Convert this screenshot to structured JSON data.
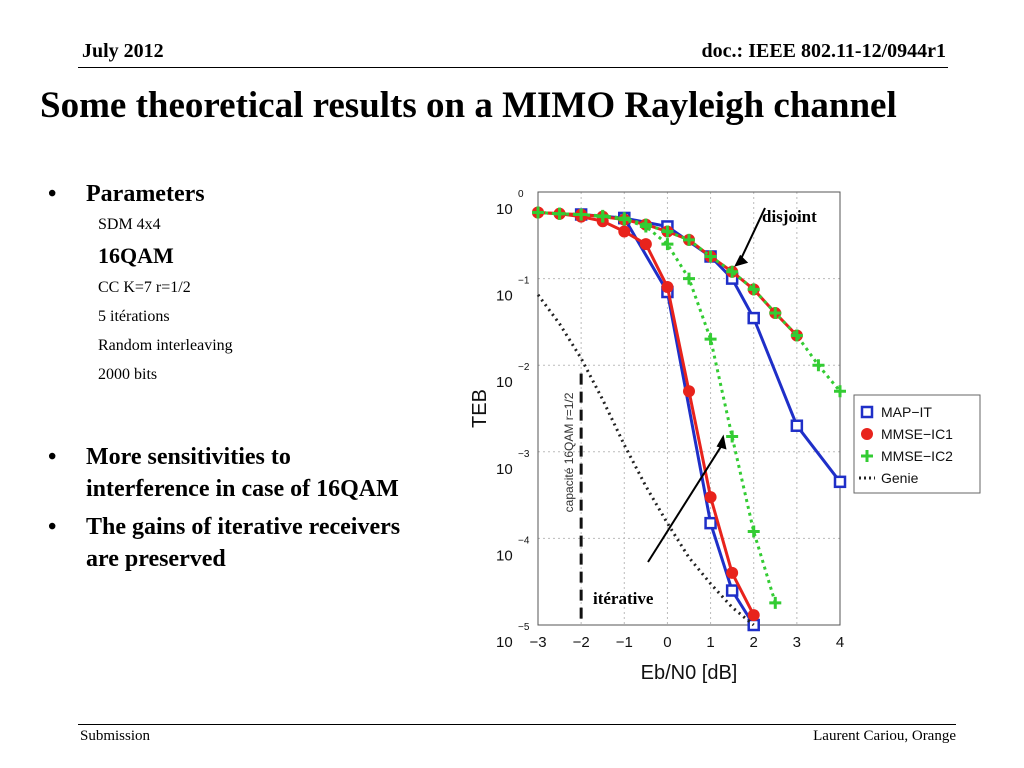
{
  "header": {
    "date": "July 2012",
    "doc": "doc.: IEEE 802.11-12/0944r1"
  },
  "title": "Some theoretical results on a MIMO Rayleigh channel",
  "bullets": {
    "parameters_label": "Parameters",
    "params": [
      "SDM 4x4",
      "16QAM",
      "CC K=7 r=1/2",
      "5 itérations",
      "Random interleaving",
      "2000 bits"
    ],
    "points": [
      "More sensitivities to interference in case of 16QAM",
      "The gains of iterative receivers are preserved"
    ]
  },
  "footer": {
    "left": "Submission",
    "right": "Laurent Cariou, Orange"
  },
  "chart_data": {
    "type": "line",
    "title": "",
    "xlabel": "Eb/N0 [dB]",
    "ylabel": "TEB",
    "xlim": [
      -3,
      4
    ],
    "ylim": [
      1e-05,
      1
    ],
    "y_scale": "log",
    "grid": true,
    "legend_position": "right",
    "x_ticks": [
      -3,
      -2,
      -1,
      0,
      1,
      2,
      3,
      4
    ],
    "x_tick_labels": [
      "−3",
      "−2",
      "−1",
      "0",
      "1",
      "2",
      "3",
      "4"
    ],
    "y_tick_exponents": [
      "0",
      "−1",
      "−2",
      "−3",
      "−4",
      "−5"
    ],
    "y_tick_base": "10",
    "series": [
      {
        "name": "MAP−IT",
        "color": "#1f2fc8",
        "marker": "square",
        "style": "solid",
        "x": [
          -1,
          0,
          1,
          1.5,
          2,
          3,
          4
        ],
        "y": [
          0.5,
          0.4,
          0.18,
          0.1,
          0.035,
          0.002,
          0.00045
        ]
      },
      {
        "name": "MAP−IT",
        "color": "#1f2fc8",
        "marker": "square",
        "style": "solid",
        "x": [
          -2,
          -1,
          0,
          1,
          1.5,
          2
        ],
        "y": [
          0.55,
          0.5,
          0.07,
          0.00015,
          2.5e-05,
          1e-05
        ]
      },
      {
        "name": "MMSE−IC1",
        "color": "#e8231c",
        "marker": "circle",
        "style": "solid",
        "x": [
          -3,
          -2.5,
          -2,
          -1.5,
          -1,
          -0.5,
          0,
          0.5,
          1,
          1.5,
          2
        ],
        "y": [
          0.58,
          0.56,
          0.52,
          0.46,
          0.35,
          0.25,
          0.08,
          0.005,
          0.0003,
          4e-05,
          1.3e-05
        ]
      },
      {
        "name": "MMSE−IC1",
        "color": "#e8231c",
        "marker": "circle",
        "style": "solid",
        "x": [
          -3,
          -2.5,
          -2,
          -1.5,
          -1,
          -0.5,
          0,
          0.5,
          1,
          1.5,
          2,
          2.5,
          3
        ],
        "y": [
          0.58,
          0.56,
          0.55,
          0.52,
          0.48,
          0.42,
          0.35,
          0.28,
          0.18,
          0.12,
          0.075,
          0.04,
          0.022
        ]
      },
      {
        "name": "MMSE−IC2",
        "color": "#33cc33",
        "marker": "plus",
        "style": "dotted",
        "x": [
          -3,
          -2.5,
          -2,
          -1.5,
          -1,
          -0.5,
          0,
          0.5,
          1,
          1.5,
          2,
          2.5,
          3,
          3.5,
          4
        ],
        "y": [
          0.58,
          0.56,
          0.55,
          0.53,
          0.5,
          0.42,
          0.35,
          0.28,
          0.18,
          0.12,
          0.075,
          0.04,
          0.022,
          0.01,
          0.005
        ]
      },
      {
        "name": "MMSE−IC2",
        "color": "#33cc33",
        "marker": "plus",
        "style": "dotted",
        "x": [
          -3,
          -2.5,
          -2,
          -1.5,
          -1,
          -0.5,
          0,
          0.5,
          1,
          1.5,
          2,
          2.5
        ],
        "y": [
          0.58,
          0.56,
          0.55,
          0.52,
          0.48,
          0.4,
          0.25,
          0.1,
          0.02,
          0.0015,
          0.00012,
          1.8e-05
        ]
      },
      {
        "name": "Genie",
        "color": "#222222",
        "marker": "none",
        "style": "dotted",
        "x": [
          -3,
          -2.5,
          -2,
          -1.5,
          -1,
          -0.5,
          0,
          0.5,
          1,
          1.5,
          2
        ],
        "y": [
          0.065,
          0.03,
          0.012,
          0.004,
          0.0012,
          0.0004,
          0.00015,
          6e-05,
          3e-05,
          1.6e-05,
          1e-05
        ]
      }
    ],
    "legend_series": [
      0,
      2,
      4,
      6
    ],
    "capacity_line": {
      "x": -2,
      "label": "capacité 16QAM r=1/2"
    },
    "annotations": [
      {
        "text": "disjoint",
        "arrow_to": [
          1.5,
          0.13
        ]
      },
      {
        "text": "itérative",
        "arrow_to": [
          1.3,
          0.0015
        ]
      }
    ]
  }
}
